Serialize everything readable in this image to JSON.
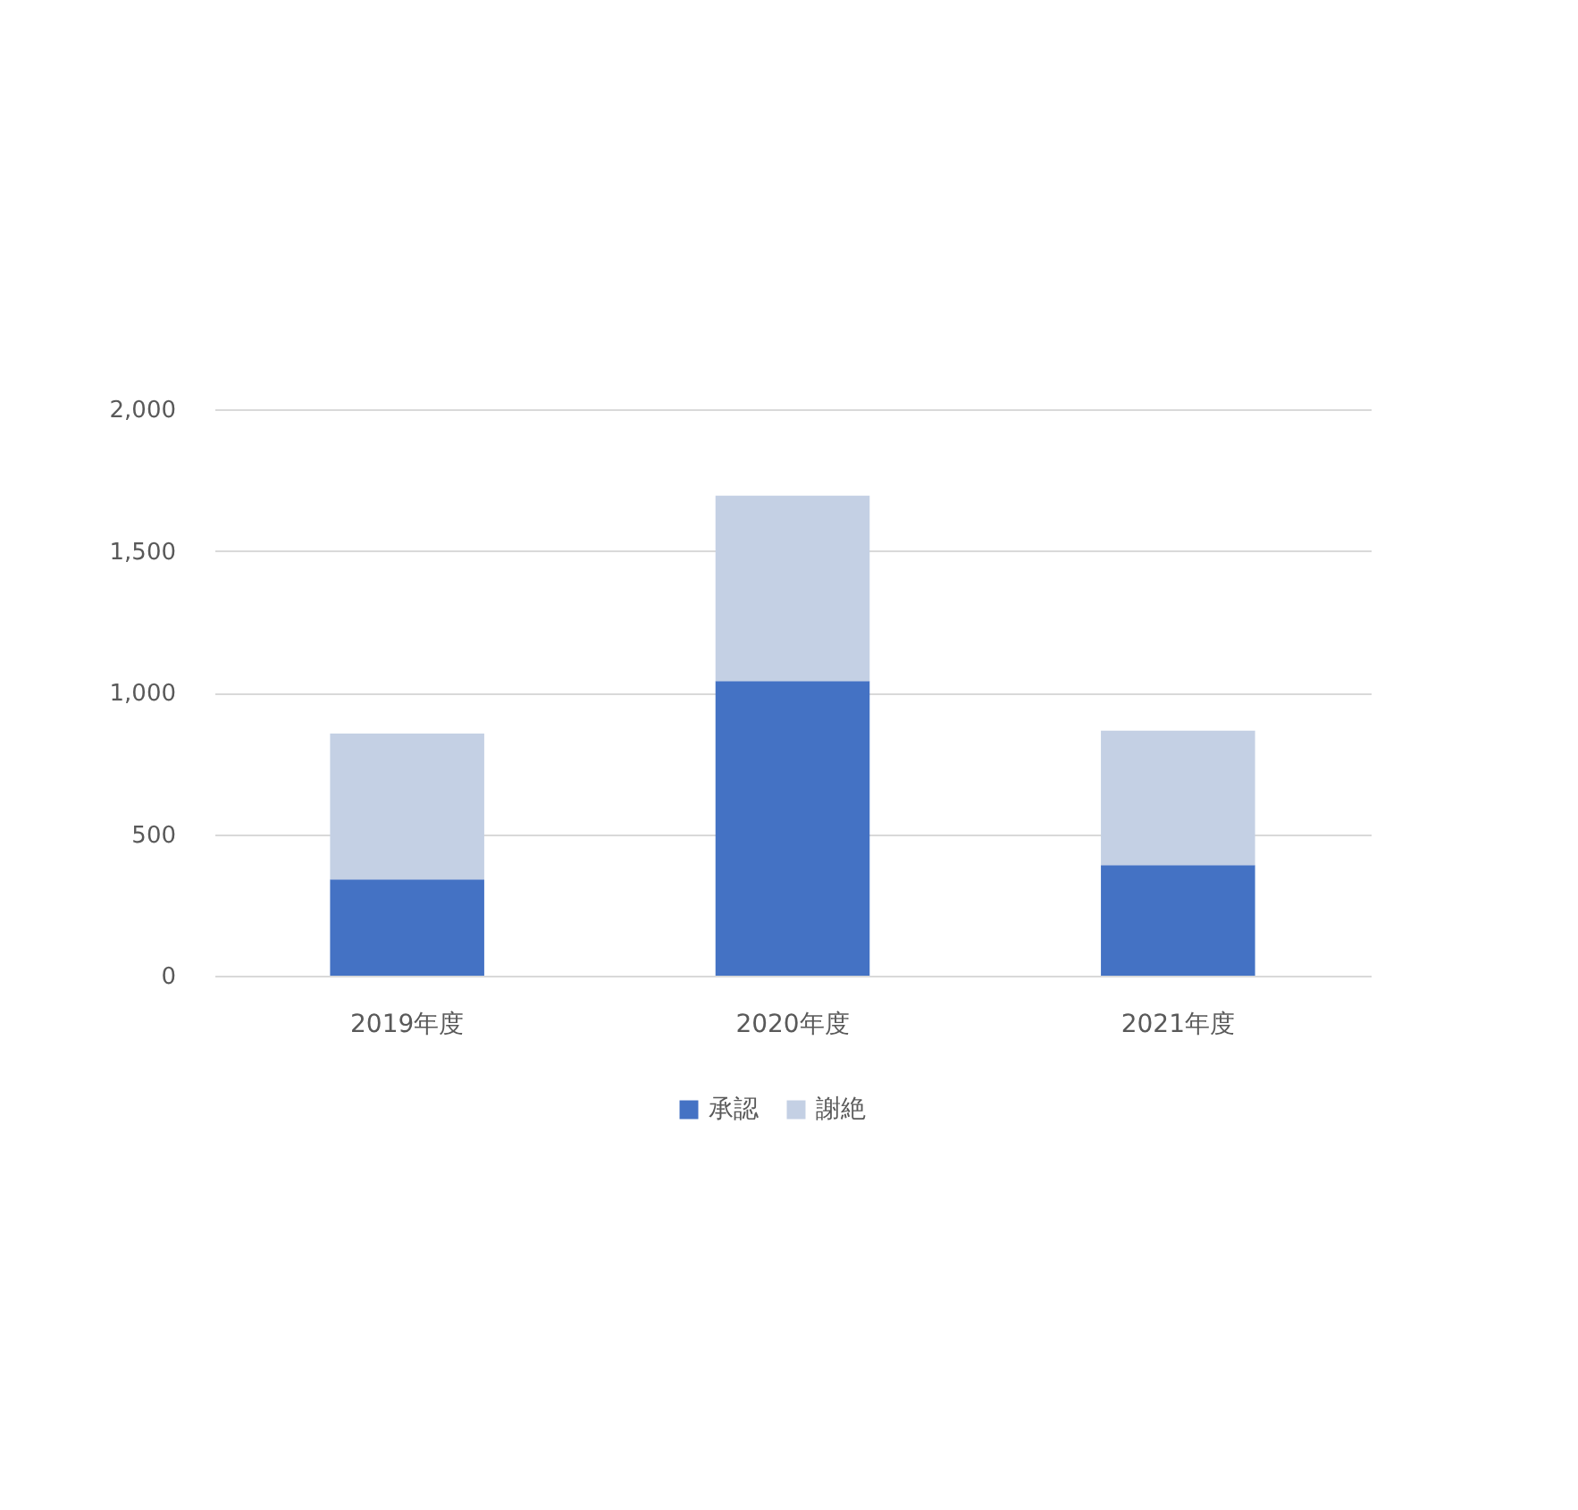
{
  "chart_data": {
    "type": "bar",
    "categories": [
      "2019年度",
      "2020年度",
      "2021年度"
    ],
    "series": [
      {
        "name": "承認",
        "color": "#4472c4",
        "values": [
          340,
          1040,
          390
        ]
      },
      {
        "name": "謝絶",
        "color": "#c4d0e4",
        "values": [
          515,
          655,
          475
        ]
      }
    ],
    "stacked": true,
    "ylim": [
      0,
      2000
    ],
    "yticks": [
      0,
      500,
      {
        "value": 1000,
        "label": "1,000"
      },
      {
        "value": 1500,
        "label": "1,500"
      },
      {
        "value": 2000,
        "label": "2,000"
      }
    ],
    "grid": "y",
    "legend": "bottom"
  }
}
